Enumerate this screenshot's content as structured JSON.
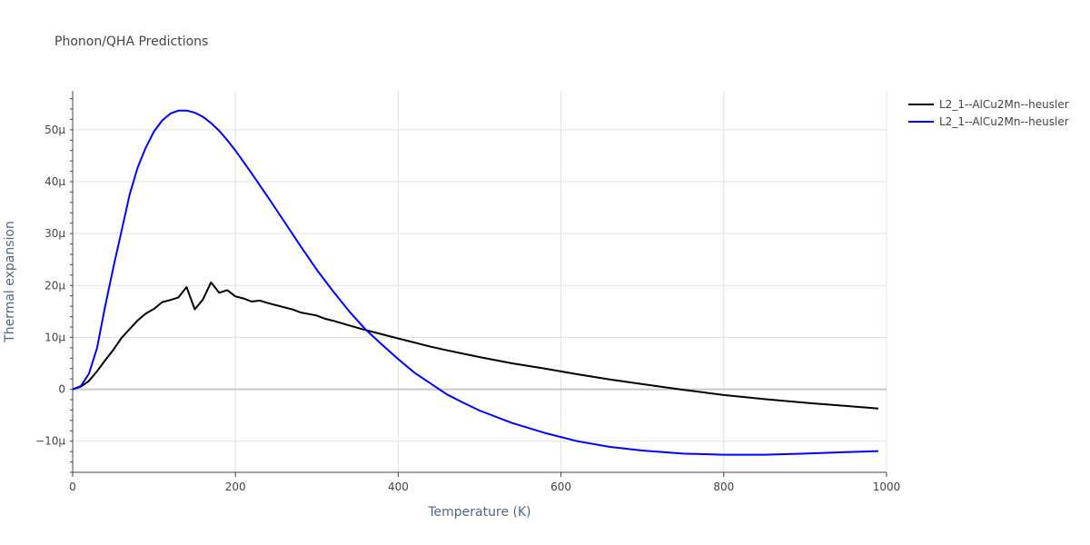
{
  "chart_data": {
    "type": "line",
    "title": "Phonon/QHA Predictions",
    "xlabel": "Temperature (K)",
    "ylabel": "Thermal expansion",
    "xlim": [
      0,
      1000
    ],
    "ylim": [
      -16,
      57.5
    ],
    "grid": true,
    "legend_position": "top-right",
    "x_ticks": [
      0,
      200,
      400,
      600,
      800,
      1000
    ],
    "x_tick_labels": [
      "0",
      "200",
      "400",
      "600",
      "800",
      "1000"
    ],
    "y_ticks": [
      -10,
      0,
      10,
      20,
      30,
      40,
      50
    ],
    "y_tick_labels": [
      "−10μ",
      "0",
      "10μ",
      "20μ",
      "30μ",
      "40μ",
      "50μ"
    ],
    "series": [
      {
        "name": "L2_1--AlCu2Mn--heusler",
        "color": "#000000",
        "x": [
          0,
          10,
          20,
          30,
          40,
          50,
          60,
          70,
          80,
          90,
          100,
          110,
          120,
          130,
          140,
          150,
          160,
          170,
          180,
          190,
          200,
          210,
          220,
          230,
          240,
          250,
          260,
          270,
          280,
          290,
          300,
          310,
          320,
          340,
          360,
          380,
          400,
          420,
          440,
          460,
          500,
          540,
          580,
          620,
          660,
          700,
          750,
          800,
          850,
          900,
          950,
          990
        ],
        "y": [
          0,
          0.5,
          1.6,
          3.5,
          5.6,
          7.6,
          9.9,
          11.6,
          13.3,
          14.6,
          15.5,
          16.8,
          17.2,
          17.7,
          19.7,
          15.4,
          17.3,
          20.6,
          18.6,
          19.1,
          17.9,
          17.5,
          16.9,
          17.1,
          16.6,
          16.2,
          15.8,
          15.4,
          14.8,
          14.5,
          14.2,
          13.6,
          13.2,
          12.3,
          11.4,
          10.6,
          9.8,
          9.0,
          8.2,
          7.5,
          6.2,
          5.0,
          4.0,
          2.9,
          1.9,
          1.0,
          -0.1,
          -1.1,
          -1.9,
          -2.6,
          -3.2,
          -3.7
        ]
      },
      {
        "name": "L2_1--AlCu2Mn--heusler",
        "color": "#0000ff",
        "x": [
          0,
          10,
          20,
          30,
          40,
          50,
          60,
          70,
          80,
          90,
          100,
          110,
          120,
          130,
          140,
          150,
          160,
          170,
          180,
          190,
          200,
          220,
          240,
          260,
          280,
          300,
          320,
          340,
          360,
          380,
          400,
          420,
          440,
          460,
          480,
          500,
          540,
          580,
          620,
          660,
          700,
          750,
          800,
          850,
          900,
          950,
          990
        ],
        "y": [
          0,
          0.6,
          3,
          8,
          16,
          23.5,
          30.5,
          37.5,
          42.8,
          46.6,
          49.7,
          51.8,
          53.1,
          53.7,
          53.7,
          53.3,
          52.5,
          51.3,
          49.8,
          48.0,
          46.0,
          41.6,
          37.0,
          32.3,
          27.6,
          23.0,
          18.9,
          15.0,
          11.5,
          8.6,
          5.8,
          3.2,
          1.1,
          -1.0,
          -2.6,
          -4.1,
          -6.5,
          -8.4,
          -10.0,
          -11.1,
          -11.8,
          -12.4,
          -12.6,
          -12.6,
          -12.4,
          -12.1,
          -11.9
        ]
      }
    ]
  }
}
